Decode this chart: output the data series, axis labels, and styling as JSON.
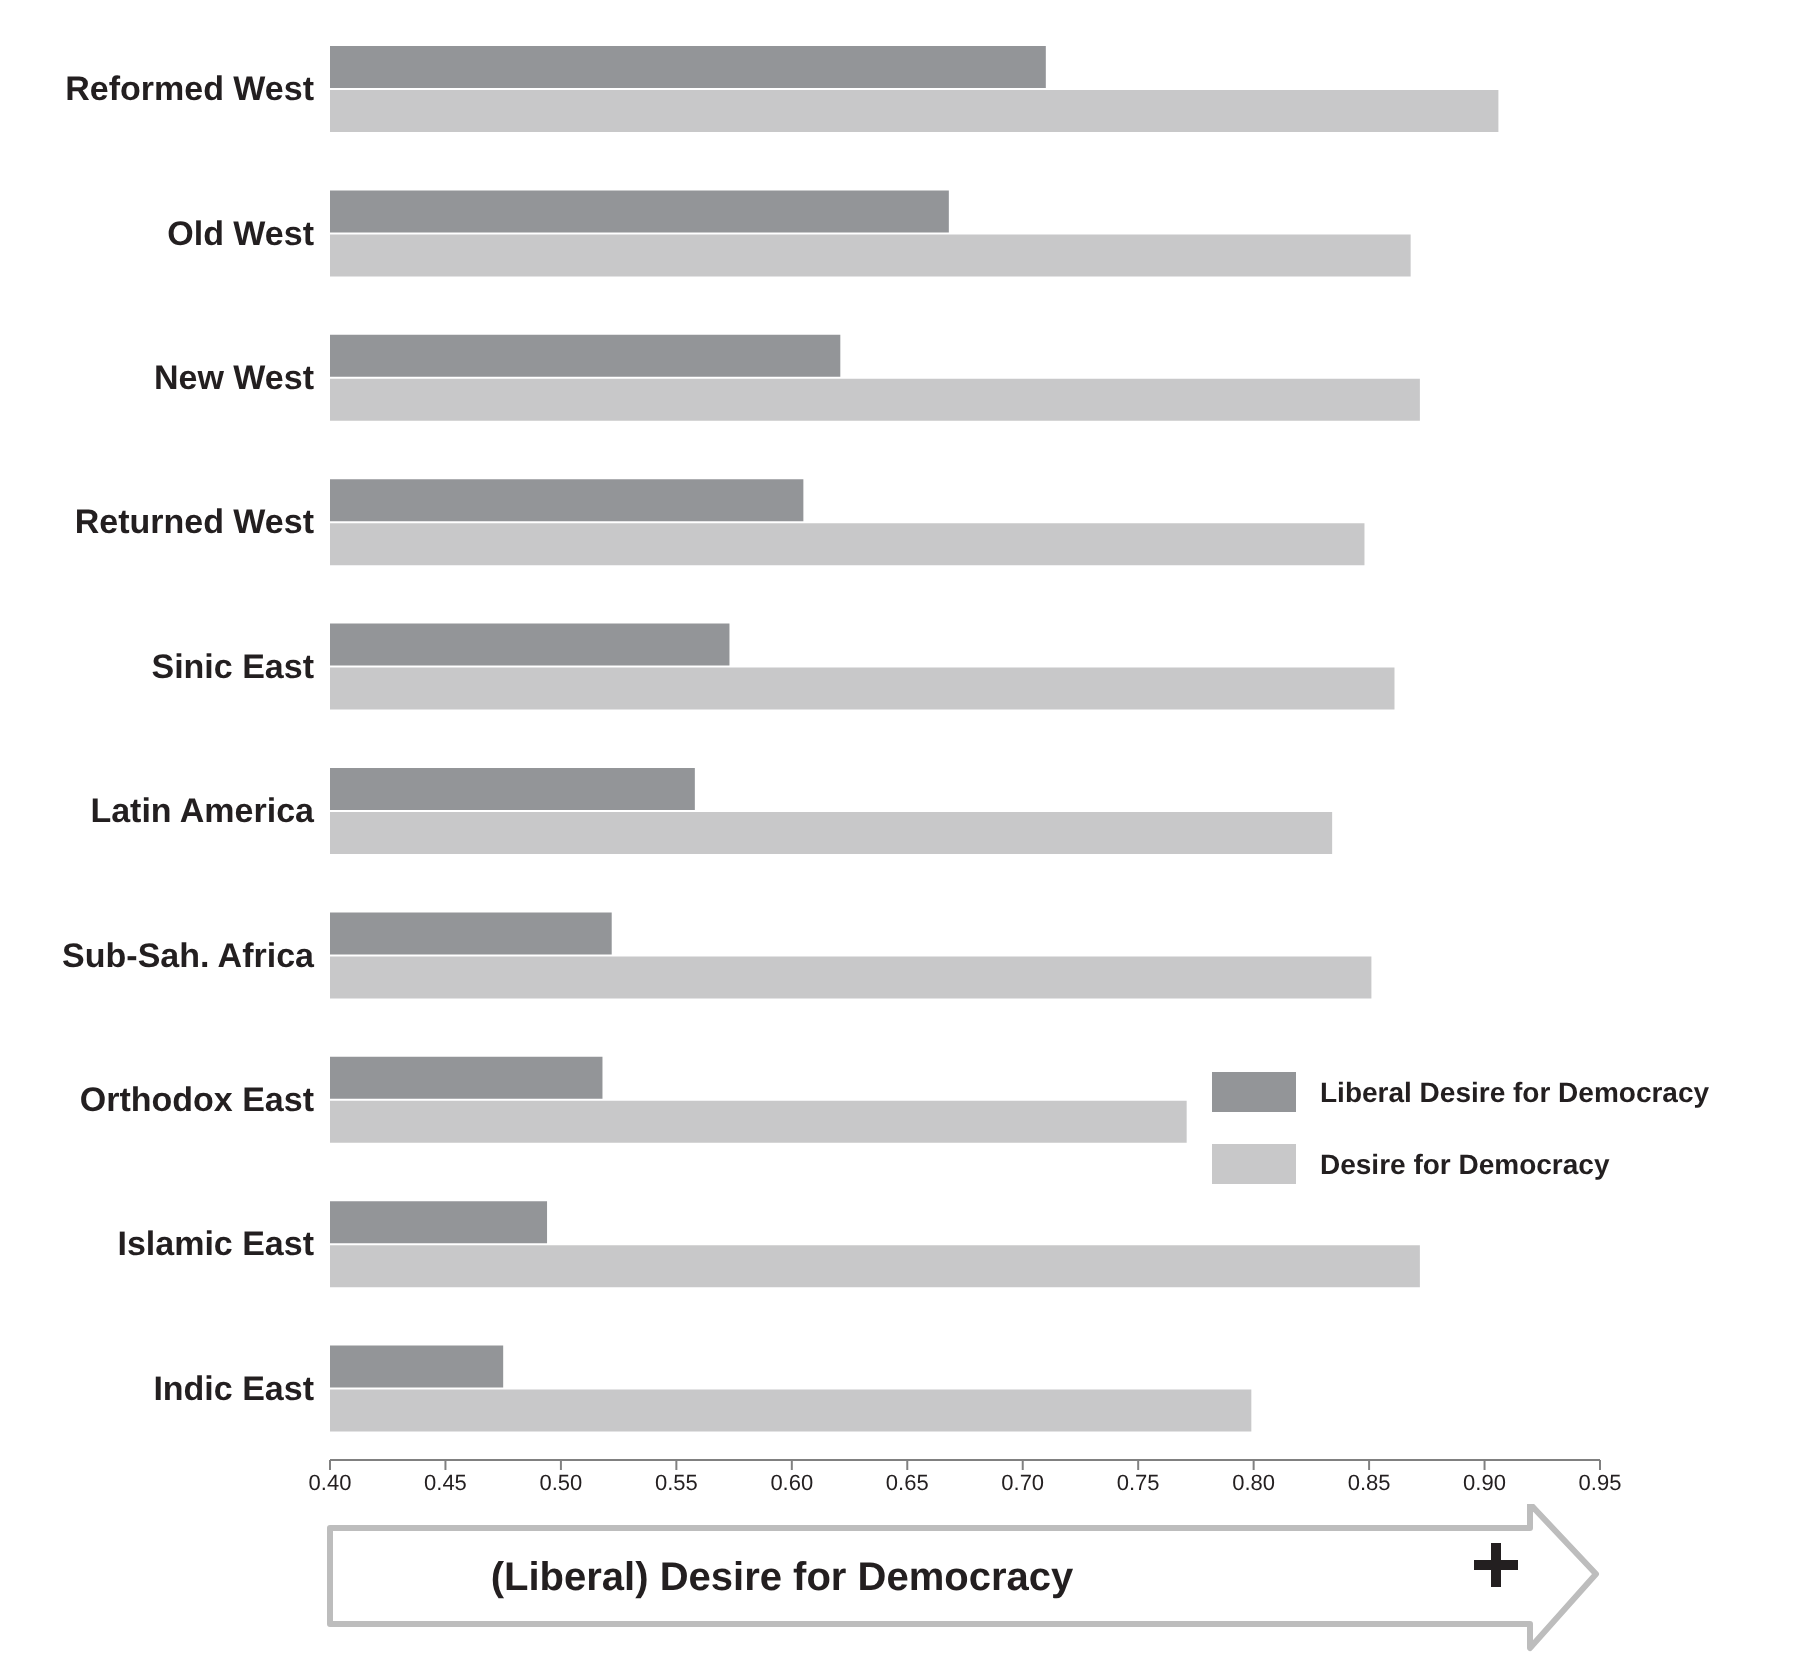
{
  "chart_data": {
    "type": "bar",
    "orientation": "horizontal",
    "xlabel": "(Liberal) Desire for Democracy",
    "categories": [
      "Reformed West",
      "Old West",
      "New West",
      "Returned West",
      "Sinic East",
      "Latin America",
      "Sub-Sah. Africa",
      "Orthodox East",
      "Islamic East",
      "Indic East"
    ],
    "series": [
      {
        "name": "Liberal Desire for Democracy",
        "color": "#939598",
        "values": [
          0.71,
          0.668,
          0.621,
          0.605,
          0.573,
          0.558,
          0.522,
          0.518,
          0.494,
          0.475
        ]
      },
      {
        "name": "Desire for Democracy",
        "color": "#c8c8c9",
        "values": [
          0.906,
          0.868,
          0.872,
          0.848,
          0.861,
          0.834,
          0.851,
          0.771,
          0.872,
          0.799
        ]
      }
    ],
    "xlim": [
      0.4,
      0.95
    ],
    "xticks": [
      {
        "value": 0.4,
        "label": "0.40"
      },
      {
        "value": 0.45,
        "label": "0.45"
      },
      {
        "value": 0.5,
        "label": "0.50"
      },
      {
        "value": 0.55,
        "label": "0.55"
      },
      {
        "value": 0.6,
        "label": "0.60"
      },
      {
        "value": 0.65,
        "label": "0.65"
      },
      {
        "value": 0.7,
        "label": "0.70"
      },
      {
        "value": 0.75,
        "label": "0.75"
      },
      {
        "value": 0.8,
        "label": "0.80"
      },
      {
        "value": 0.85,
        "label": "0.85"
      },
      {
        "value": 0.9,
        "label": "0.90"
      },
      {
        "value": 0.95,
        "label": "0.95"
      }
    ],
    "grid": false,
    "legend": "right"
  }
}
